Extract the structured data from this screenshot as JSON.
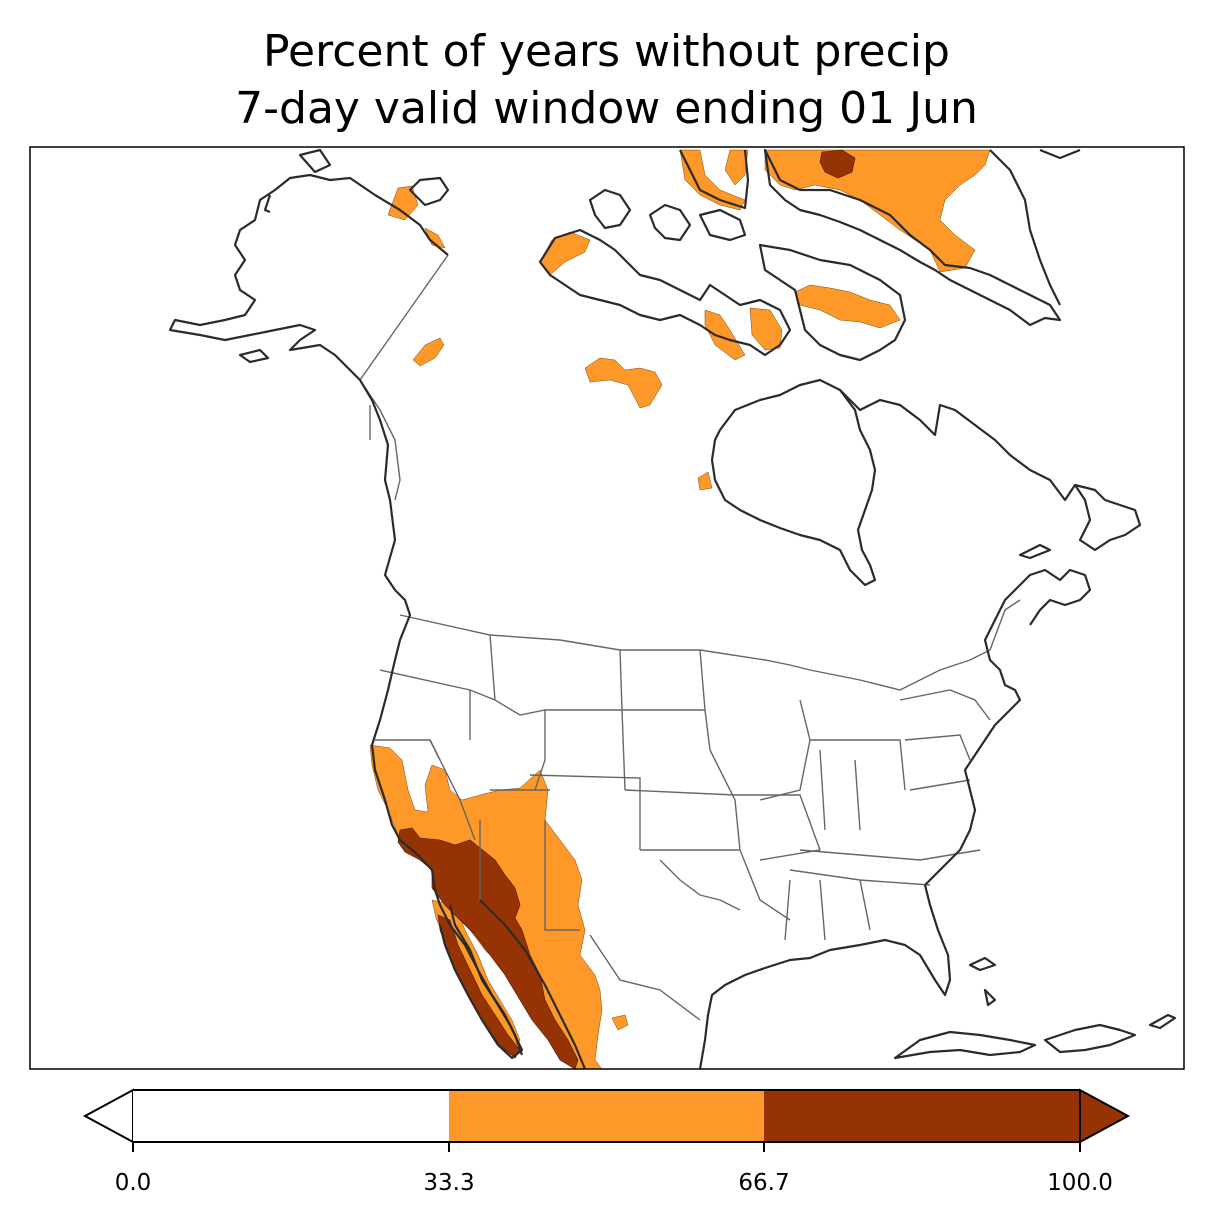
{
  "title": {
    "line1": "Percent of years without precip",
    "line2": "7-day valid window ending 01 Jun"
  },
  "colorbar": {
    "ticks": [
      "0.0",
      "33.3",
      "66.7",
      "100.0"
    ],
    "bins": [
      {
        "from": 0.0,
        "to": 33.3,
        "color": "#ffffff"
      },
      {
        "from": 33.3,
        "to": 66.7,
        "color": "#fd9829"
      },
      {
        "from": 66.7,
        "to": 100.0,
        "color": "#953305"
      }
    ],
    "extend": "both"
  },
  "colors": {
    "coastline": "#2b2b2b",
    "borders": "#666666",
    "medium": "#fd9829",
    "high": "#953305"
  }
}
